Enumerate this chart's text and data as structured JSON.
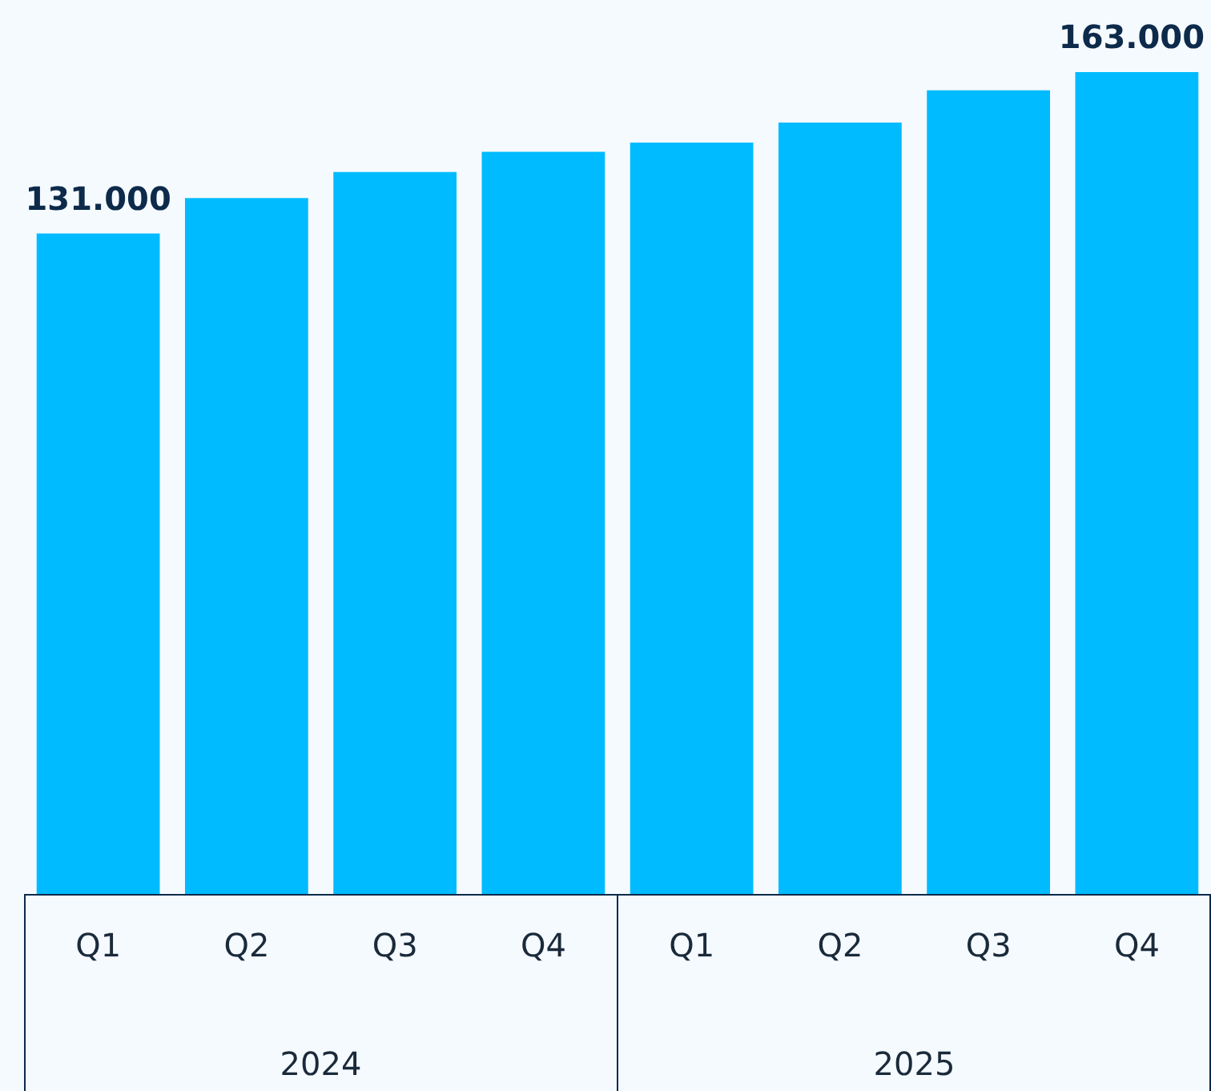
{
  "chart_data": {
    "type": "bar",
    "categories": [
      "Q1",
      "Q2",
      "Q3",
      "Q4",
      "Q1",
      "Q2",
      "Q3",
      "Q4"
    ],
    "values": [
      131000,
      138000,
      143200,
      147200,
      149000,
      153000,
      159400,
      163000
    ],
    "value_labels": [
      "131.000",
      null,
      null,
      null,
      null,
      null,
      null,
      "163.000"
    ],
    "color": "#00bbff",
    "annotations": [
      "2024",
      "2025"
    ],
    "grid": false,
    "legend": false
  }
}
